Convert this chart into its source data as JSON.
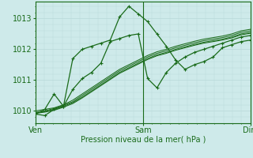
{
  "background_color": "#ceeaea",
  "grid_color": "#b8d8d8",
  "line_color": "#1a6b1a",
  "marker_color": "#1a6b1a",
  "xlabel": "Pression niveau de la mer( hPa )",
  "xtick_labels": [
    "Ven",
    "Sam",
    "Dim"
  ],
  "xtick_positions": [
    0.0,
    1.0,
    2.0
  ],
  "ylim": [
    1009.6,
    1013.55
  ],
  "yticks": [
    1010,
    1011,
    1012,
    1013
  ],
  "xlim": [
    0.0,
    2.0
  ],
  "detailed_series": [
    [
      1009.9,
      1009.85,
      1010.05,
      1010.15,
      1011.7,
      1012.0,
      1012.1,
      1012.2,
      1012.3,
      1013.05,
      1013.4,
      1013.15,
      1012.9,
      1012.5,
      1012.1,
      1011.65,
      1011.35,
      1011.5,
      1011.6,
      1011.75,
      1012.05,
      1012.15,
      1012.25,
      1012.3
    ],
    [
      1009.9,
      1010.05,
      1010.55,
      1010.15,
      1010.7,
      1011.05,
      1011.25,
      1011.55,
      1012.25,
      1012.35,
      1012.45,
      1012.5,
      1011.05,
      1010.75,
      1011.25,
      1011.55,
      1011.75,
      1011.9,
      1012.0,
      1012.1,
      1012.2,
      1012.3,
      1012.4,
      1012.45
    ]
  ],
  "smooth_series": [
    [
      1010.0,
      1010.05,
      1010.1,
      1010.2,
      1010.35,
      1010.55,
      1010.75,
      1010.95,
      1011.15,
      1011.35,
      1011.5,
      1011.65,
      1011.8,
      1011.92,
      1012.0,
      1012.1,
      1012.18,
      1012.26,
      1012.33,
      1012.38,
      1012.43,
      1012.5,
      1012.6,
      1012.65
    ],
    [
      1009.95,
      1010.0,
      1010.08,
      1010.18,
      1010.3,
      1010.5,
      1010.7,
      1010.9,
      1011.1,
      1011.3,
      1011.45,
      1011.6,
      1011.75,
      1011.87,
      1011.95,
      1012.05,
      1012.13,
      1012.21,
      1012.28,
      1012.33,
      1012.38,
      1012.45,
      1012.55,
      1012.6
    ],
    [
      1009.95,
      1009.98,
      1010.05,
      1010.15,
      1010.27,
      1010.45,
      1010.65,
      1010.85,
      1011.05,
      1011.25,
      1011.4,
      1011.55,
      1011.7,
      1011.82,
      1011.9,
      1012.0,
      1012.08,
      1012.16,
      1012.23,
      1012.28,
      1012.33,
      1012.4,
      1012.5,
      1012.55
    ],
    [
      1009.92,
      1009.96,
      1010.02,
      1010.12,
      1010.24,
      1010.42,
      1010.62,
      1010.82,
      1011.02,
      1011.22,
      1011.37,
      1011.52,
      1011.67,
      1011.79,
      1011.87,
      1011.97,
      1012.05,
      1012.13,
      1012.2,
      1012.25,
      1012.3,
      1012.37,
      1012.47,
      1012.52
    ]
  ],
  "n_points": 24,
  "figsize": [
    3.2,
    2.0
  ],
  "dpi": 100
}
